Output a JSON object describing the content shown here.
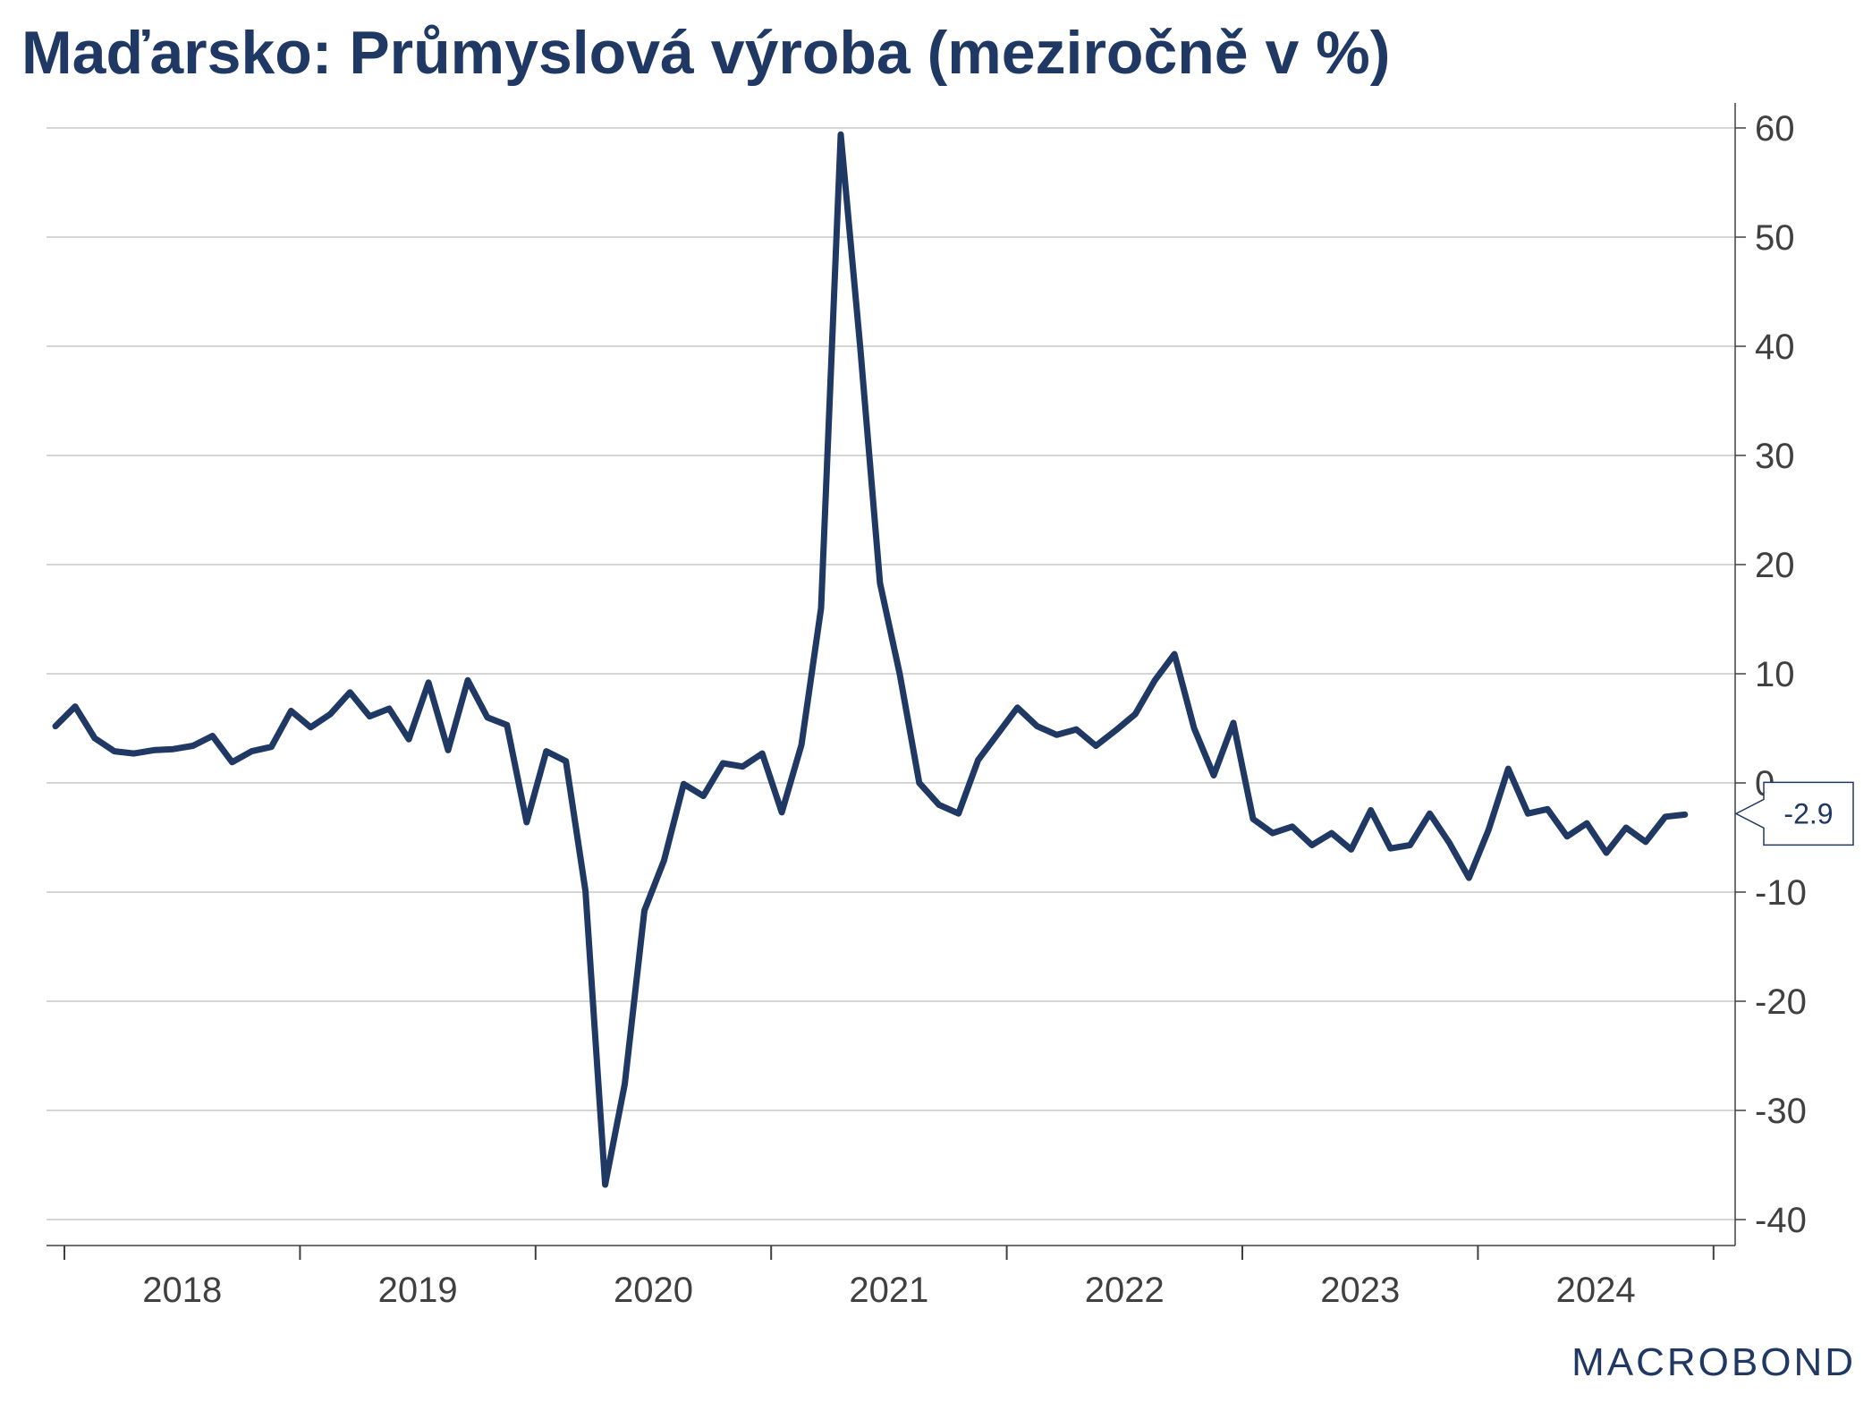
{
  "title": "Maďarsko: Průmyslová výroba (meziročně v %)",
  "brand": "MACROBOND",
  "colors": {
    "line": "#1f3864",
    "title": "#1f3864",
    "grid": "#c8c8c8",
    "axis": "#404040"
  },
  "chart_data": {
    "type": "line",
    "title": "Maďarsko: Průmyslová výroba (meziročně v %)",
    "xlabel": "",
    "ylabel": "",
    "x_ticks": [
      "2018",
      "2019",
      "2020",
      "2021",
      "2022",
      "2023",
      "2024"
    ],
    "y_ticks": [
      60,
      50,
      40,
      30,
      20,
      10,
      0,
      -10,
      -20,
      -30,
      -40
    ],
    "ylim": [
      -42,
      62
    ],
    "y_axis_side": "right",
    "grid": true,
    "last_value_label": "-2.9",
    "series": [
      {
        "x": [
          "2018-01",
          "2018-02",
          "2018-03",
          "2018-04",
          "2018-05",
          "2018-06",
          "2018-07",
          "2018-08",
          "2018-09",
          "2018-10",
          "2018-11",
          "2018-12",
          "2019-01",
          "2019-02",
          "2019-03",
          "2019-04",
          "2019-05",
          "2019-06",
          "2019-07",
          "2019-08",
          "2019-09",
          "2019-10",
          "2019-11",
          "2019-12",
          "2020-01",
          "2020-02",
          "2020-03",
          "2020-04",
          "2020-05",
          "2020-06",
          "2020-07",
          "2020-08",
          "2020-09",
          "2020-10",
          "2020-11",
          "2020-12",
          "2021-01",
          "2021-02",
          "2021-03",
          "2021-04",
          "2021-05",
          "2021-06",
          "2021-07",
          "2021-08",
          "2021-09",
          "2021-10",
          "2021-11",
          "2021-12",
          "2022-01",
          "2022-02",
          "2022-03",
          "2022-04",
          "2022-05",
          "2022-06",
          "2022-07",
          "2022-08",
          "2022-09",
          "2022-10",
          "2022-11",
          "2022-12",
          "2023-01",
          "2023-02",
          "2023-03",
          "2023-04",
          "2023-05",
          "2023-06",
          "2023-07",
          "2023-08",
          "2023-09",
          "2023-10",
          "2023-11",
          "2023-12",
          "2024-01",
          "2024-02",
          "2024-03",
          "2024-04",
          "2024-05",
          "2024-06",
          "2024-07",
          "2024-08",
          "2024-09",
          "2024-10",
          "2024-11",
          "2024-12"
        ],
        "values": [
          5.2,
          7.0,
          4.1,
          2.9,
          2.7,
          3.0,
          3.1,
          3.4,
          4.3,
          1.9,
          2.9,
          3.3,
          6.6,
          5.1,
          6.3,
          8.3,
          6.1,
          6.8,
          4.0,
          9.2,
          3.0,
          9.4,
          6.0,
          5.3,
          -3.6,
          2.9,
          2.0,
          -9.9,
          -36.8,
          -27.6,
          -11.7,
          -7.1,
          -0.1,
          -1.2,
          1.8,
          1.5,
          2.7,
          -2.7,
          3.5,
          16.0,
          59.4,
          39.8,
          18.3,
          10.0,
          0.0,
          -2.0,
          -2.8,
          2.1,
          4.5,
          6.9,
          5.2,
          4.4,
          4.9,
          3.4,
          4.8,
          6.3,
          9.4,
          11.8,
          5.0,
          0.7,
          5.5,
          -3.3,
          -4.6,
          -4.0,
          -5.7,
          -4.6,
          -6.1,
          -2.5,
          -6.0,
          -5.7,
          -2.8,
          -5.5,
          -8.7,
          -4.3,
          1.3,
          -2.8,
          -2.4,
          -4.9,
          -3.7,
          -6.4,
          -4.1,
          -5.4,
          -3.1,
          -2.9
        ]
      }
    ]
  }
}
